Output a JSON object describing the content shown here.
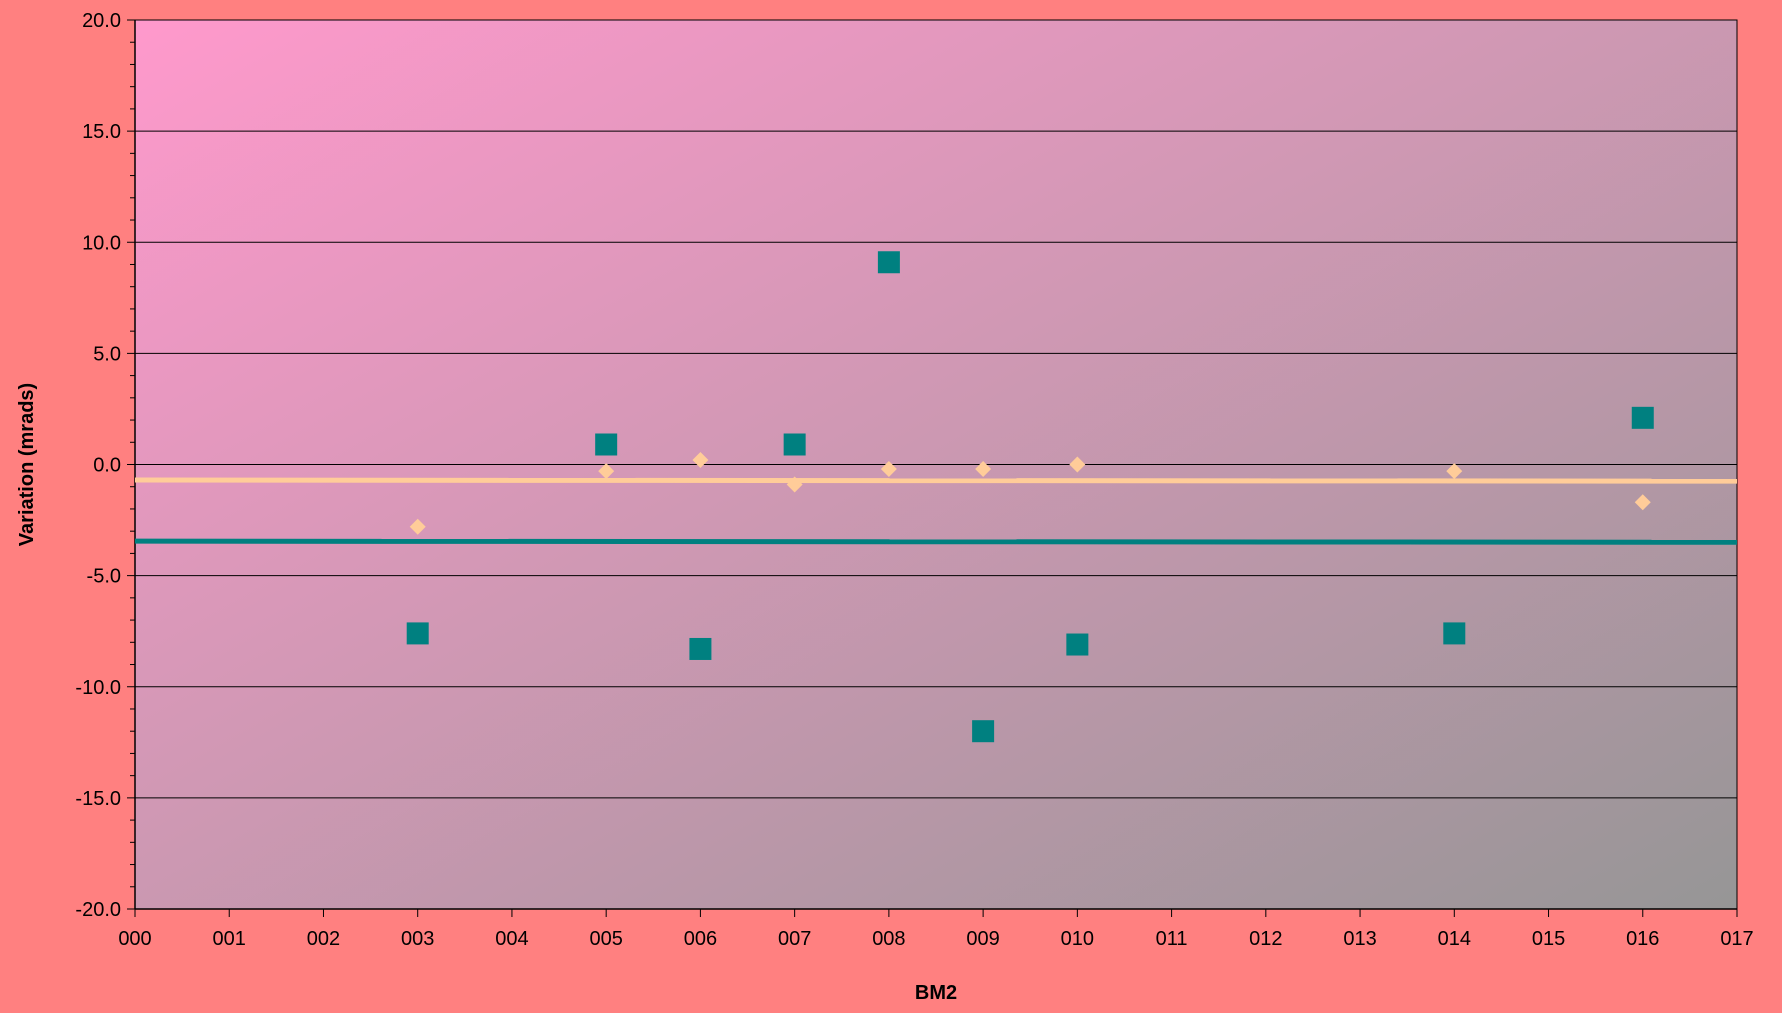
{
  "chart_data": {
    "type": "scatter",
    "title": "",
    "xlabel": "BM2",
    "ylabel": "Variation (mrads)",
    "x_tick_labels": [
      "000",
      "001",
      "002",
      "003",
      "004",
      "005",
      "006",
      "007",
      "008",
      "009",
      "010",
      "011",
      "012",
      "013",
      "014",
      "015",
      "016",
      "017"
    ],
    "y_tick_labels": [
      "20.0",
      "15.0",
      "10.0",
      "5.0",
      "0.0",
      "-5.0",
      "-10.0",
      "-15.0",
      "-20.0"
    ],
    "xlim": [
      0,
      17
    ],
    "ylim": [
      -20,
      20
    ],
    "y_ticks": [
      20,
      15,
      10,
      5,
      0,
      -5,
      -10,
      -15,
      -20
    ],
    "grid": "horizontal",
    "legend": "none",
    "series": [
      {
        "marker": "square",
        "color": "#008080",
        "points": [
          {
            "x": 3,
            "y": -7.6
          },
          {
            "x": 5,
            "y": 0.9
          },
          {
            "x": 6,
            "y": -8.3
          },
          {
            "x": 7,
            "y": 0.9
          },
          {
            "x": 8,
            "y": 9.1
          },
          {
            "x": 9,
            "y": -12.0
          },
          {
            "x": 10,
            "y": -8.1
          },
          {
            "x": 14,
            "y": -7.6
          },
          {
            "x": 16,
            "y": 2.1
          }
        ]
      },
      {
        "marker": "diamond",
        "color": "#ffcc99",
        "points": [
          {
            "x": 3,
            "y": -2.8
          },
          {
            "x": 5,
            "y": -0.3
          },
          {
            "x": 6,
            "y": 0.2
          },
          {
            "x": 7,
            "y": -0.9
          },
          {
            "x": 8,
            "y": -0.2
          },
          {
            "x": 9,
            "y": -0.2
          },
          {
            "x": 10,
            "y": 0.0
          },
          {
            "x": 14,
            "y": -0.3
          },
          {
            "x": 16,
            "y": -1.7
          }
        ]
      }
    ],
    "reference_lines": [
      {
        "color": "#ffcc99",
        "y_start": -0.7,
        "y_end": -0.75
      },
      {
        "color": "#008080",
        "y_start": -3.45,
        "y_end": -3.5
      }
    ],
    "colors": {
      "page_background": "#ff8080",
      "plot_gradient_start": "#ff99cc",
      "plot_gradient_end": "#969696",
      "axis": "#000000",
      "gridline": "#000000"
    }
  }
}
